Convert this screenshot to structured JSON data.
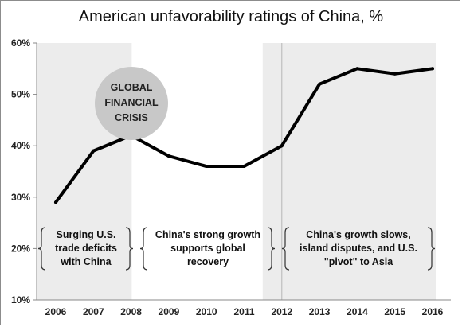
{
  "chart_data": {
    "type": "line",
    "title": "American unfavorability ratings of China, %",
    "x": [
      2006,
      2007,
      2008,
      2009,
      2010,
      2011,
      2012,
      2013,
      2014,
      2015,
      2016
    ],
    "series": [
      {
        "values": [
          29,
          39,
          42,
          38,
          36,
          36,
          40,
          52,
          55,
          54,
          55
        ]
      }
    ],
    "y_tick_labels": [
      "10%",
      "20%",
      "30%",
      "40%",
      "50%",
      "60%"
    ],
    "ylim": [
      10,
      60
    ],
    "grid": false,
    "shaded_periods": [
      [
        2006,
        2008
      ],
      [
        2012,
        2016
      ]
    ],
    "callout": [
      "GLOBAL",
      "FINANCIAL",
      "CRISIS"
    ],
    "annotations": [
      {
        "lines": [
          "Surging U.S.",
          "trade deficits",
          "with China"
        ]
      },
      {
        "lines": [
          "China's strong growth",
          "supports global",
          "recovery"
        ]
      },
      {
        "lines": [
          "China's growth slows,",
          "island disputes, and U.S.",
          "\"pivot\" to Asia"
        ]
      }
    ],
    "colors": {
      "line": "#000000",
      "shade": "#ececec",
      "bubble": "#c8c8c8",
      "axis": "#888888"
    }
  }
}
